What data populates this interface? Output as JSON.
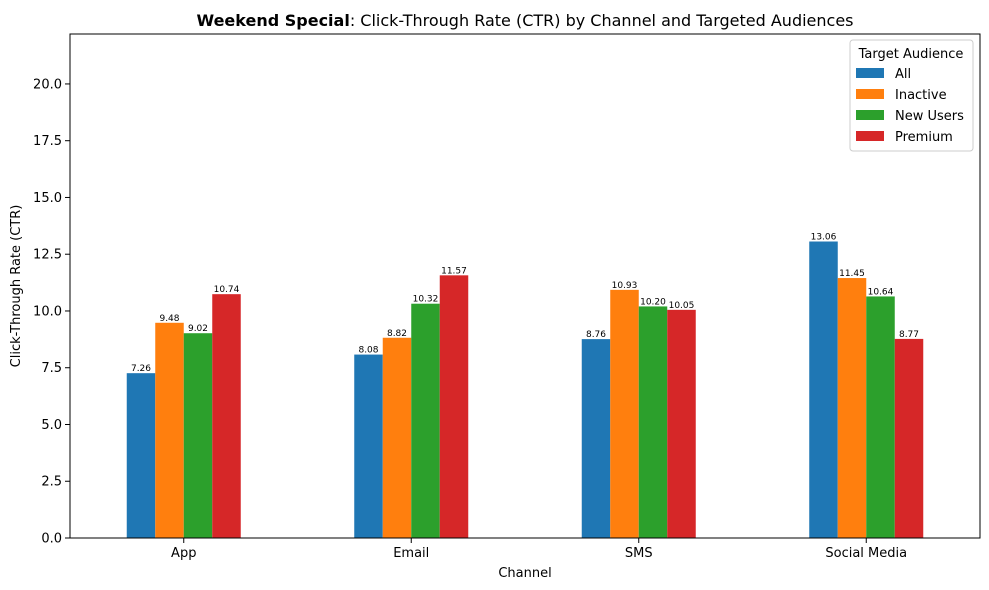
{
  "chart_data": {
    "type": "bar",
    "title_bold": "Weekend Special",
    "title_rest": ": Click-Through Rate (CTR) by Channel and Targeted Audiences",
    "xlabel": "Channel",
    "ylabel": "Click-Through Rate (CTR)",
    "categories": [
      "App",
      "Email",
      "SMS",
      "Social Media"
    ],
    "ylim": [
      0,
      22.2
    ],
    "yticks": [
      0.0,
      2.5,
      5.0,
      7.5,
      10.0,
      12.5,
      15.0,
      17.5,
      20.0
    ],
    "legend_title": "Target Audience",
    "legend_position": "top-right",
    "grid": false,
    "series": [
      {
        "name": "All",
        "color": "#1f77b4",
        "values": [
          7.26,
          8.08,
          8.76,
          13.06
        ]
      },
      {
        "name": "Inactive",
        "color": "#ff7f0e",
        "values": [
          9.48,
          8.82,
          10.93,
          11.45
        ]
      },
      {
        "name": "New Users",
        "color": "#2ca02c",
        "values": [
          9.02,
          10.32,
          10.2,
          10.64
        ]
      },
      {
        "name": "Premium",
        "color": "#d62728",
        "values": [
          10.74,
          11.57,
          10.05,
          8.77
        ]
      }
    ]
  }
}
